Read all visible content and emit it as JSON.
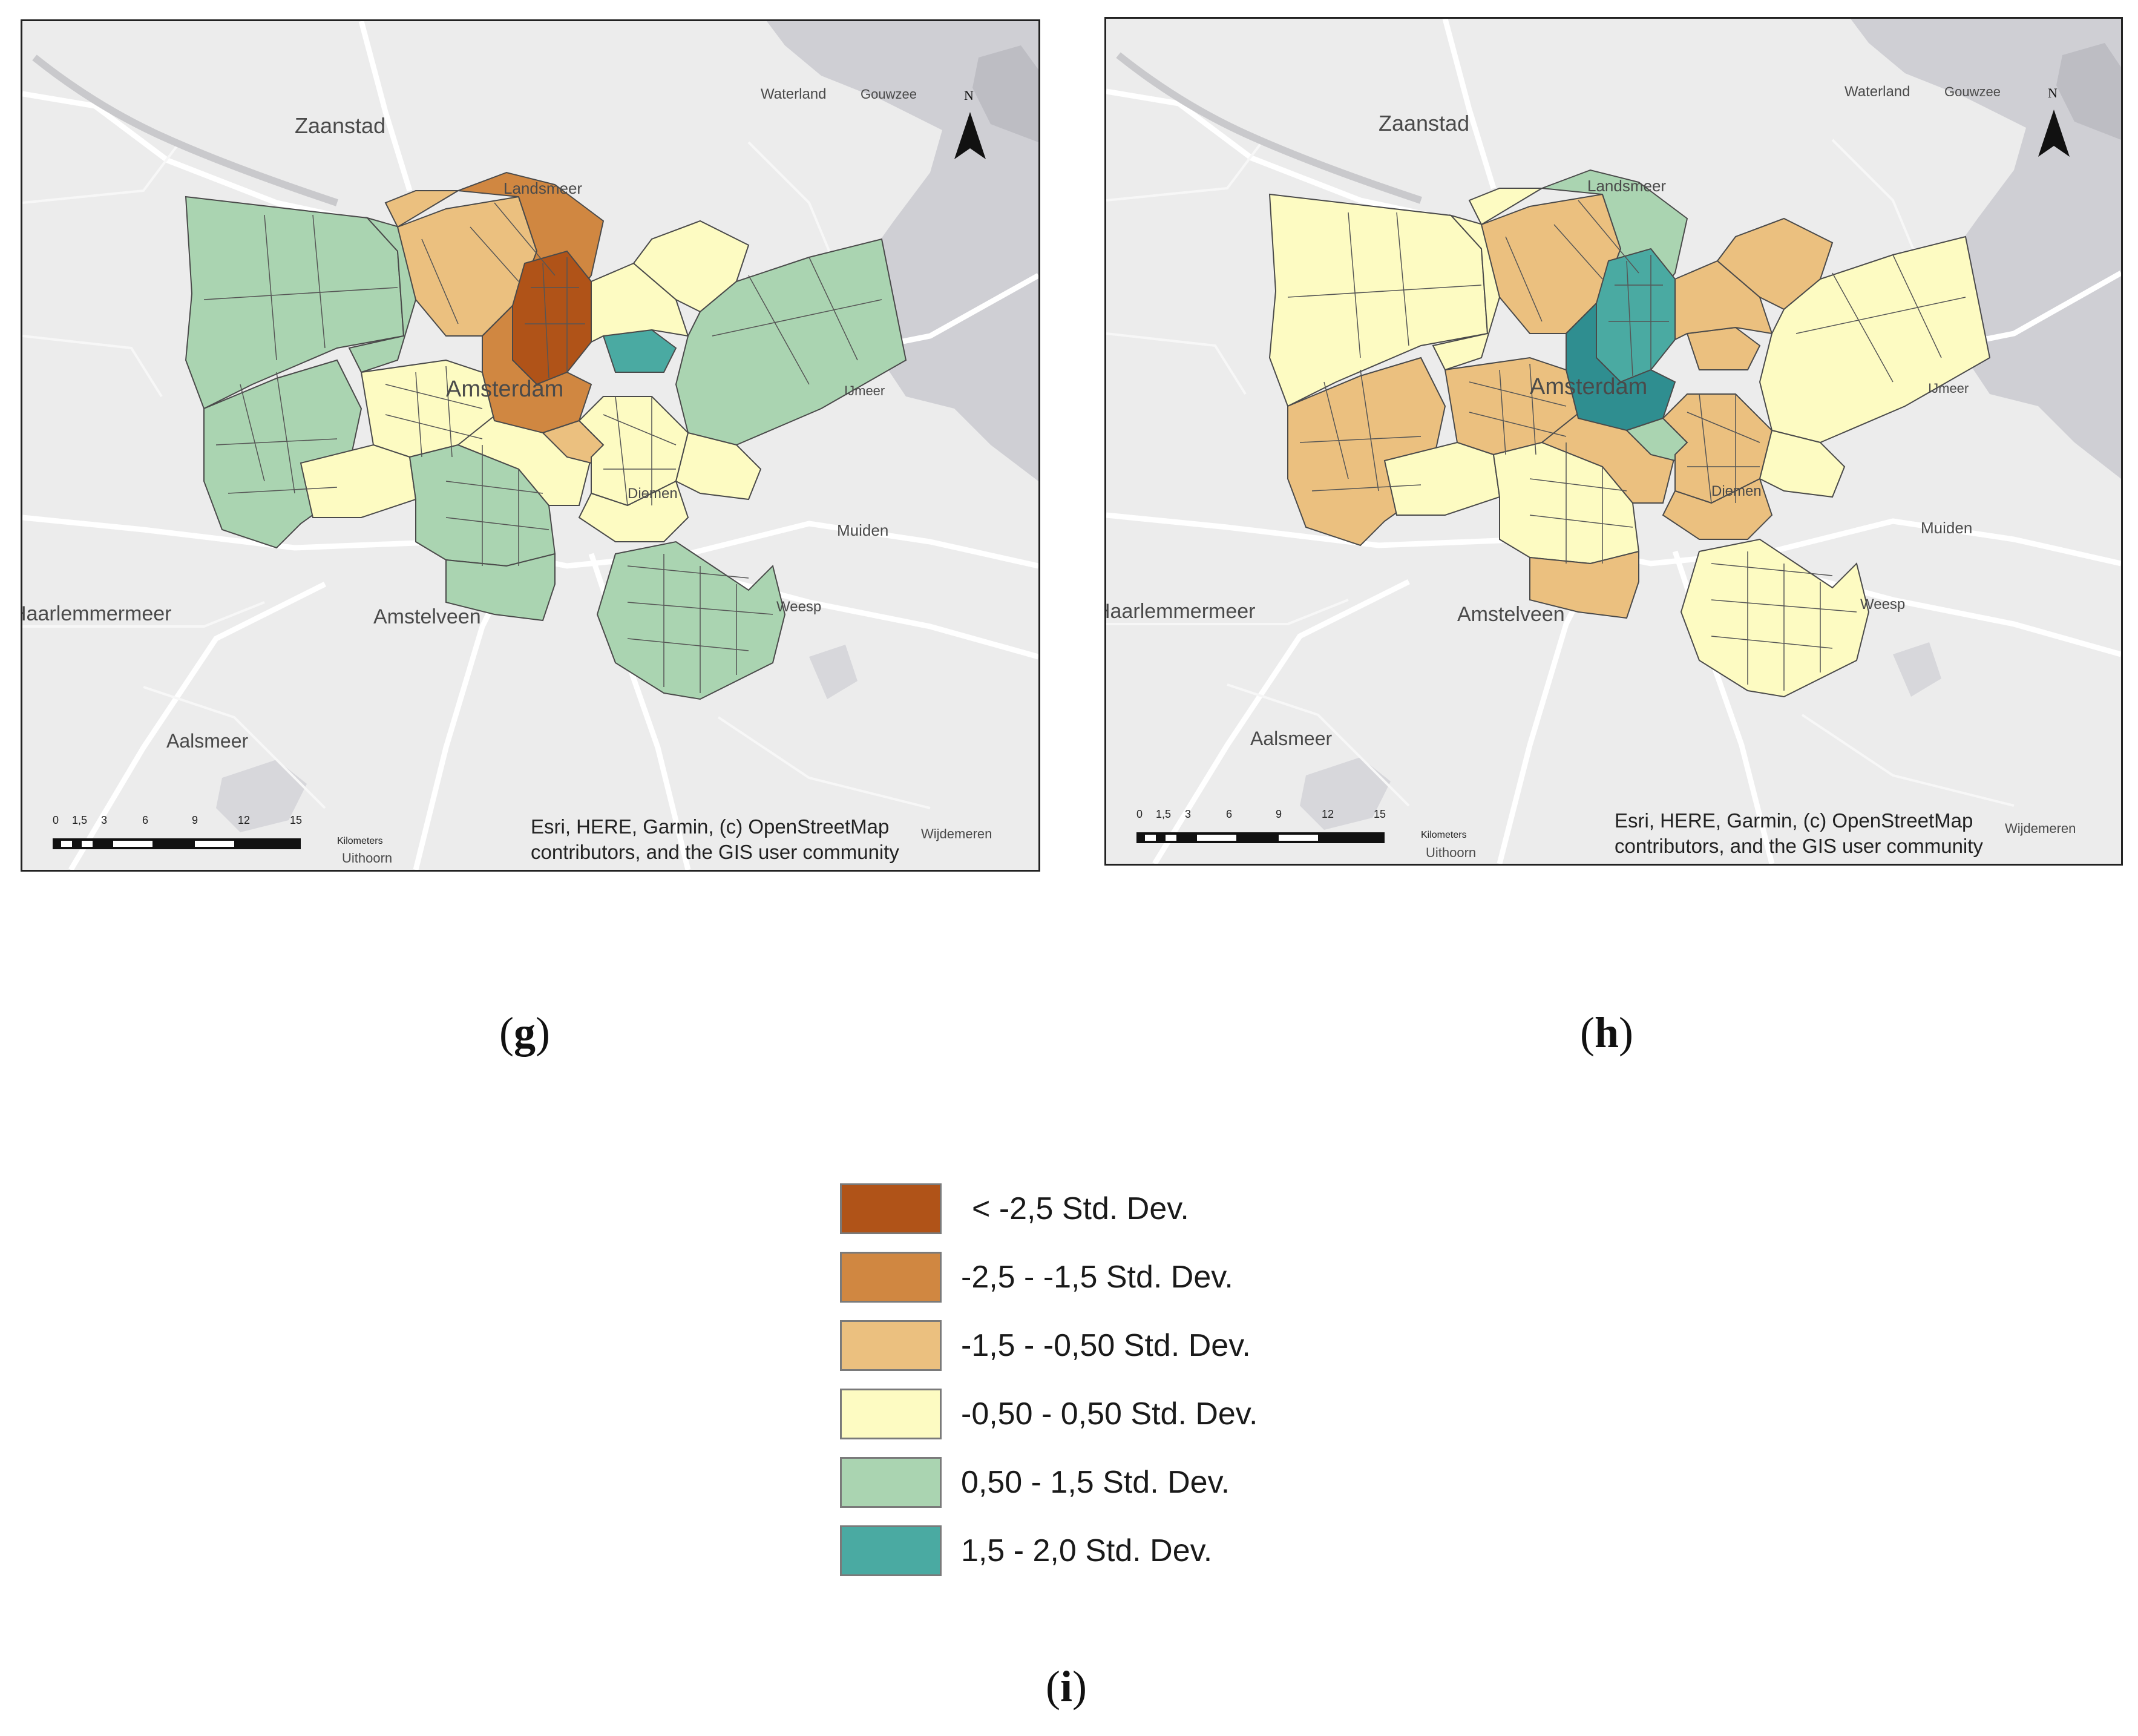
{
  "maps": [
    {
      "id": "g",
      "label": "g",
      "places": {
        "zaanstad": "Zaanstad",
        "waterland": "Waterland",
        "gouwzee": "Gouwzee",
        "landsmeer": "Landsmeer",
        "amsterdam": "Amsterdam",
        "ijmeer": "IJmeer",
        "diemen": "Diemen",
        "muiden": "Muiden",
        "weesp": "Weesp",
        "haarlemmermeer": "Haarlemmermeer",
        "amstelveen": "Amstelveen",
        "aalsmeer": "Aalsmeer",
        "uithoorn": "Uithoorn",
        "wijdemeren": "Wijdemeren"
      },
      "north": "N",
      "scale_ticks": [
        "0",
        "1,5",
        "3",
        "6",
        "9",
        "12",
        "15"
      ],
      "scale_unit": "Kilometers",
      "attribution_line1": "Esri, HERE, Garmin, (c) OpenStreetMap",
      "attribution_line2": "contributors, and the GIS user community"
    },
    {
      "id": "h",
      "label": "h",
      "places": {
        "zaanstad": "Zaanstad",
        "waterland": "Waterland",
        "gouwzee": "Gouwzee",
        "landsmeer": "Landsmeer",
        "amsterdam": "Amsterdam",
        "ijmeer": "IJmeer",
        "diemen": "Diemen",
        "muiden": "Muiden",
        "weesp": "Weesp",
        "haarlemmermeer": "Haarlemmermeer",
        "amstelveen": "Amstelveen",
        "aalsmeer": "Aalsmeer",
        "uithoorn": "Uithoorn",
        "wijdemeren": "Wijdemeren"
      },
      "north": "N",
      "scale_ticks": [
        "0",
        "1,5",
        "3",
        "6",
        "9",
        "12",
        "15"
      ],
      "scale_unit": "Kilometers",
      "attribution_line1": "Esri, HERE, Garmin, (c) OpenStreetMap",
      "attribution_line2": "contributors, and the GIS user community"
    }
  ],
  "legend": {
    "label": "i",
    "classes": [
      {
        "text": "< -2,5 Std. Dev.",
        "color": "#b05318"
      },
      {
        "text": "-2,5 - -1,5 Std. Dev.",
        "color": "#d08741"
      },
      {
        "text": "-1,5 - -0,50 Std. Dev.",
        "color": "#ebc07f"
      },
      {
        "text": "-0,50 - 0,50 Std. Dev.",
        "color": "#fdfbc2"
      },
      {
        "text": "0,50 - 1,5 Std. Dev.",
        "color": "#aad4b1"
      },
      {
        "text": "1,5 - 2,0 Std. Dev.",
        "color": "#4aaaa2"
      }
    ]
  }
}
